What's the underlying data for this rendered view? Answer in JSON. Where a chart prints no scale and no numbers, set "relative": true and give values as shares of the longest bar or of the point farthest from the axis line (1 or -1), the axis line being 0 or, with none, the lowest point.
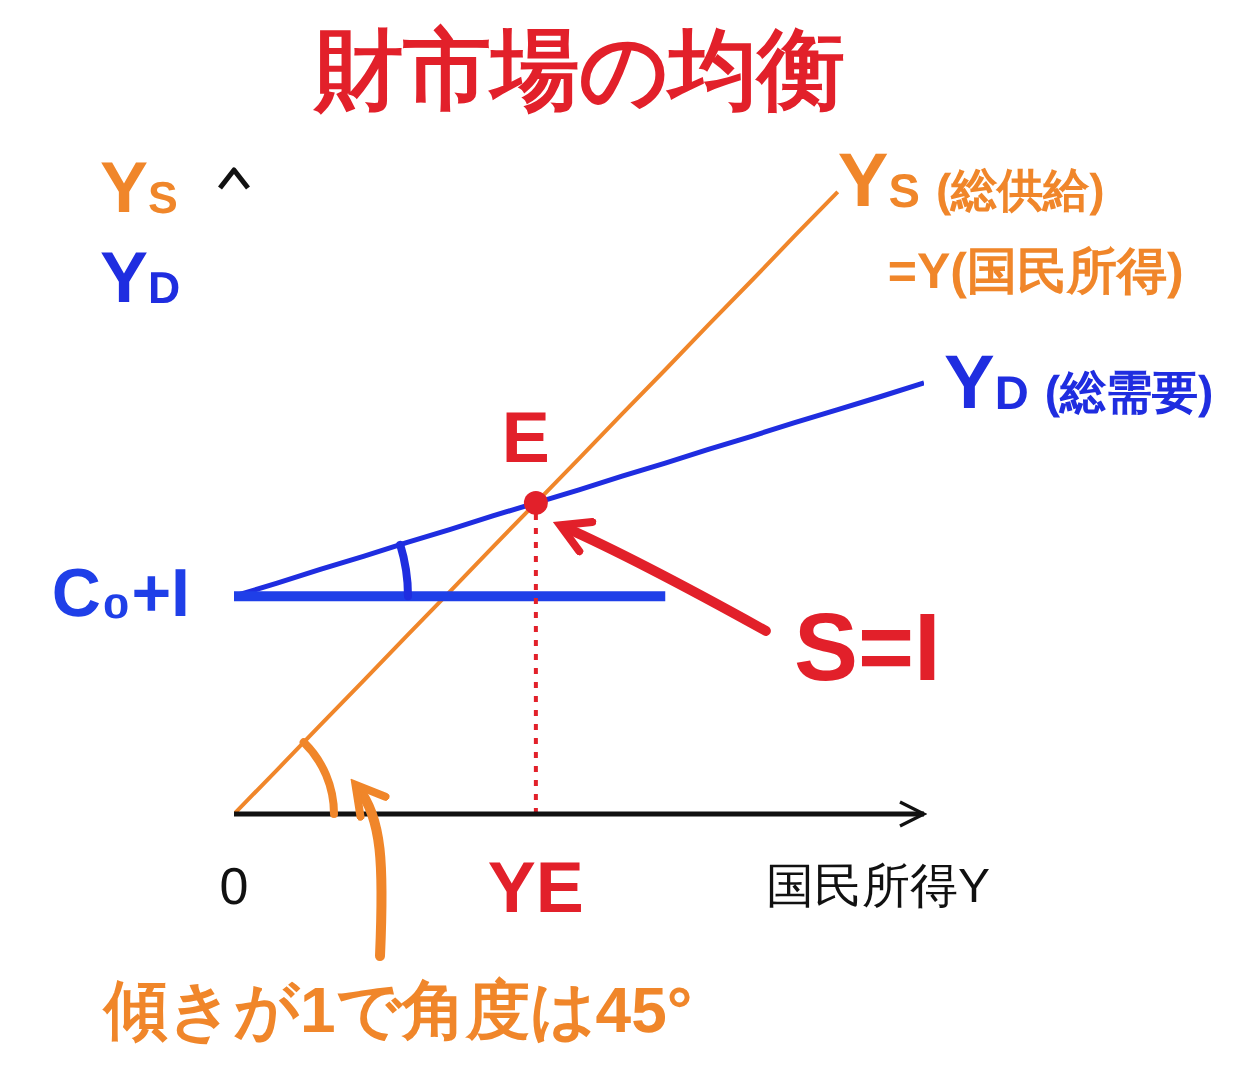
{
  "chart_data": {
    "type": "line",
    "title": "財市場の均衡",
    "xlabel": "国民所得Y",
    "ylabel": "Y$_{S}$\nY$_{D}$",
    "relative": true,
    "categories": [
      "0",
      null,
      null,
      null,
      null,
      null,
      null,
      "YE",
      null,
      null,
      null,
      null,
      null,
      null,
      null,
      null,
      null
    ],
    "series": [
      {
        "name": "Y$_{S}$ (総供給)\n=Y(国民所得)",
        "color": "#f0862a",
        "values": [
          0,
          0.071,
          0.143,
          0.214,
          0.286,
          0.357,
          0.429,
          0.5,
          0.571,
          0.643,
          0.714,
          0.786,
          0.857,
          0.929,
          1,
          null,
          null
        ]
      },
      {
        "name": "Y$_{D}$ (総需要)",
        "color": "#1f2de0",
        "values": [
          0.35,
          0.371,
          0.393,
          0.414,
          0.436,
          0.457,
          0.479,
          0.5,
          0.521,
          0.543,
          0.564,
          0.586,
          0.607,
          0.629,
          0.65,
          0.671,
          0.693
        ]
      },
      {
        "name": "C₀+I",
        "color": "#1f3fe8",
        "values": [
          0.35,
          0.35,
          0.35,
          0.35,
          0.35,
          0.35,
          0.35,
          0.35,
          0.35,
          0.35,
          0.35,
          null,
          null,
          null,
          null,
          null,
          null
        ]
      },
      {
        "type": "lollipop",
        "x": [
          "YE"
        ],
        "values": [
          0.5
        ],
        "color": "#e2202a",
        "marker": "circle",
        "line_style": "dotted"
      }
    ],
    "annotations": [
      {
        "text": "E",
        "x": "YE",
        "y": 0.5
      },
      {
        "text": "S=I",
        "x": "YE",
        "y": 0.5
      },
      "傾きが1で角度は45°"
    ],
    "legend": false,
    "grid": false,
    "marker": "none"
  }
}
